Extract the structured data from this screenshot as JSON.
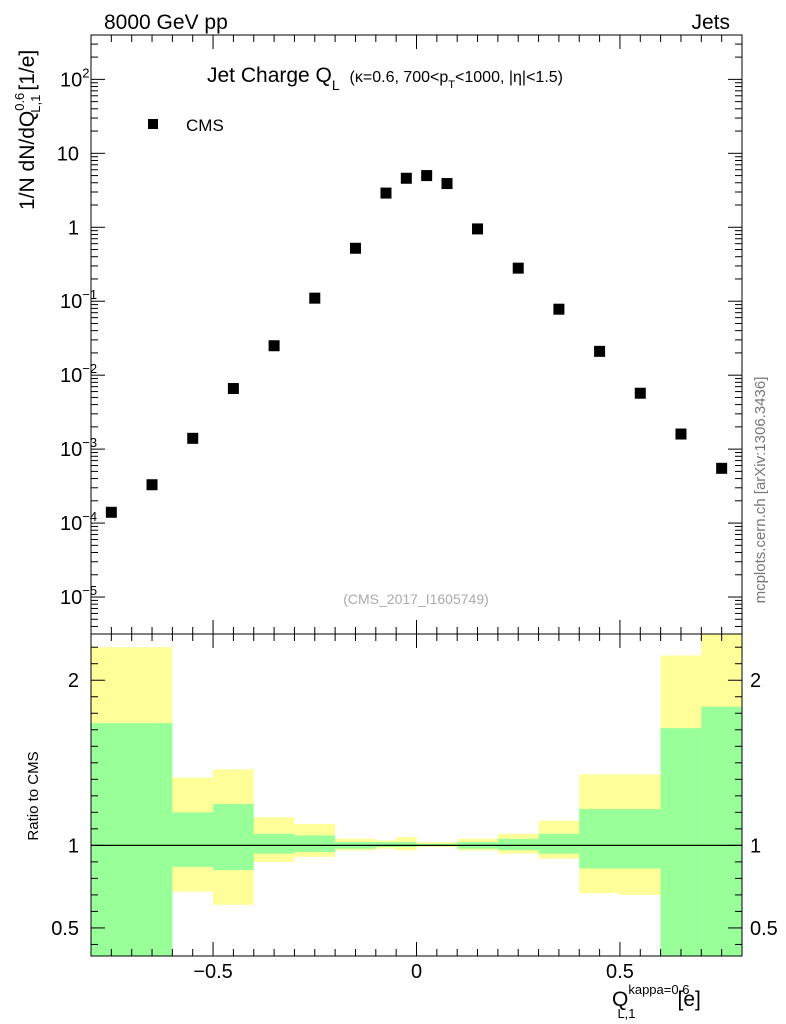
{
  "header": {
    "left": "8000 GeV pp",
    "right": "Jets"
  },
  "title": {
    "main": "Jet Charge Q",
    "main_sub": "L",
    "kin_pre": "(κ=0.6, 700<p",
    "kin_sub": "T",
    "kin_post": "<1000, |η|<1.5)"
  },
  "watermark": "mcplots.cern.ch [arXiv:1306.3436]",
  "analysis_label": "(CMS_2017_I1605749)",
  "colors": {
    "ratio_band_outer": "#ffff99",
    "ratio_band_inner": "#99ff99",
    "marker": "#000000"
  },
  "chart_data": [
    {
      "type": "scatter",
      "yscale": "log",
      "xlim": [
        -0.8,
        0.8
      ],
      "ylim_exp": [
        -5.5,
        2.6
      ],
      "ylabel": "1/N dN/dQ",
      "ylabel_sup": "0.6",
      "ylabel_sub": "L,1",
      "ylabel_unit": "[1/e]",
      "legend_placement": "top-left",
      "yticks": [
        {
          "exp": 2,
          "label": "10",
          "sup": "2"
        },
        {
          "exp": 1,
          "label": "10",
          "sup": ""
        },
        {
          "exp": 0,
          "label": "1",
          "sup": ""
        },
        {
          "exp": -1,
          "label": "10",
          "sup": "−1"
        },
        {
          "exp": -2,
          "label": "10",
          "sup": "−2"
        },
        {
          "exp": -3,
          "label": "10",
          "sup": "−3"
        },
        {
          "exp": -4,
          "label": "10",
          "sup": "−4"
        },
        {
          "exp": -5,
          "label": "10",
          "sup": "−5"
        }
      ],
      "series": [
        {
          "name": "CMS",
          "x": [
            -0.75,
            -0.65,
            -0.55,
            -0.45,
            -0.35,
            -0.25,
            -0.15,
            -0.075,
            -0.025,
            0.025,
            0.075,
            0.15,
            0.25,
            0.35,
            0.45,
            0.55,
            0.65,
            0.75
          ],
          "y": [
            0.00014,
            0.00033,
            0.0014,
            0.0066,
            0.025,
            0.11,
            0.52,
            2.9,
            4.6,
            5.0,
            3.9,
            0.95,
            0.28,
            0.078,
            0.021,
            0.0057,
            0.0016,
            0.00055
          ]
        }
      ]
    },
    {
      "type": "area",
      "ylabel": "Ratio to CMS",
      "xlim": [
        -0.8,
        0.8
      ],
      "ylim": [
        0.33,
        2.28
      ],
      "reference_line": 1,
      "xticks": [
        {
          "value": -0.5,
          "label": "−0.5"
        },
        {
          "value": 0,
          "label": "0"
        },
        {
          "value": 0.5,
          "label": "0.5"
        }
      ],
      "yticks": [
        {
          "value": 0.5,
          "label": "0.5",
          "show_label": true
        },
        {
          "value": 1,
          "label": "1",
          "show_label": true
        },
        {
          "value": 2,
          "label": "2",
          "show_label": true
        }
      ],
      "xlabel": "Q",
      "xlabel_sup": "kappa=0.6",
      "xlabel_sub": "L,1",
      "xlabel_unit": "[e]",
      "bins": [
        {
          "lo": -0.8,
          "hi": -0.6,
          "outer": [
            0.33,
            2.2
          ],
          "inner": [
            0.33,
            1.74
          ]
        },
        {
          "lo": -0.6,
          "hi": -0.5,
          "outer": [
            0.72,
            1.41
          ],
          "inner": [
            0.87,
            1.2
          ]
        },
        {
          "lo": -0.5,
          "hi": -0.4,
          "outer": [
            0.64,
            1.46
          ],
          "inner": [
            0.85,
            1.25
          ]
        },
        {
          "lo": -0.4,
          "hi": -0.3,
          "outer": [
            0.9,
            1.17
          ],
          "inner": [
            0.95,
            1.07
          ]
        },
        {
          "lo": -0.3,
          "hi": -0.2,
          "outer": [
            0.93,
            1.13
          ],
          "inner": [
            0.96,
            1.06
          ]
        },
        {
          "lo": -0.2,
          "hi": -0.1,
          "outer": [
            0.97,
            1.04
          ],
          "inner": [
            0.98,
            1.02
          ]
        },
        {
          "lo": -0.1,
          "hi": -0.05,
          "outer": [
            0.98,
            1.03
          ],
          "inner": [
            0.99,
            1.02
          ]
        },
        {
          "lo": -0.05,
          "hi": 0.0,
          "outer": [
            0.97,
            1.05
          ],
          "inner": [
            0.99,
            1.02
          ]
        },
        {
          "lo": 0.0,
          "hi": 0.05,
          "outer": [
            0.99,
            1.02
          ],
          "inner": [
            0.995,
            1.01
          ]
        },
        {
          "lo": 0.05,
          "hi": 0.1,
          "outer": [
            0.99,
            1.02
          ],
          "inner": [
            0.995,
            1.01
          ]
        },
        {
          "lo": 0.1,
          "hi": 0.2,
          "outer": [
            0.97,
            1.04
          ],
          "inner": [
            0.98,
            1.02
          ]
        },
        {
          "lo": 0.2,
          "hi": 0.3,
          "outer": [
            0.95,
            1.07
          ],
          "inner": [
            0.97,
            1.04
          ]
        },
        {
          "lo": 0.3,
          "hi": 0.4,
          "outer": [
            0.92,
            1.15
          ],
          "inner": [
            0.95,
            1.07
          ]
        },
        {
          "lo": 0.4,
          "hi": 0.5,
          "outer": [
            0.71,
            1.43
          ],
          "inner": [
            0.86,
            1.22
          ]
        },
        {
          "lo": 0.5,
          "hi": 0.6,
          "outer": [
            0.7,
            1.43
          ],
          "inner": [
            0.86,
            1.22
          ]
        },
        {
          "lo": 0.6,
          "hi": 0.7,
          "outer": [
            0.33,
            2.15
          ],
          "inner": [
            0.33,
            1.71
          ]
        },
        {
          "lo": 0.7,
          "hi": 0.8,
          "outer": [
            0.33,
            2.28
          ],
          "inner": [
            0.33,
            1.84
          ]
        }
      ]
    }
  ]
}
